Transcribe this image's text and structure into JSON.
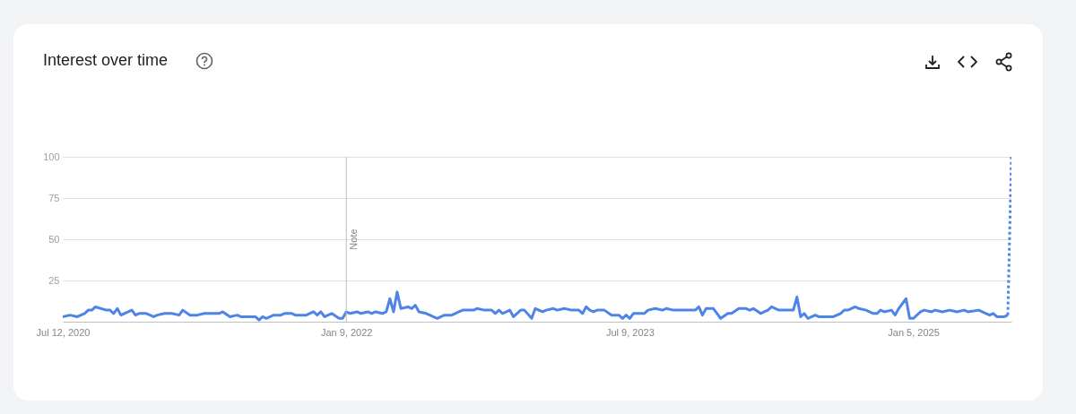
{
  "chart_data": {
    "type": "line",
    "title": "Interest over time",
    "xlim": [
      "2020-07-12",
      "2025-07-13"
    ],
    "xticks": [
      {
        "value": "2020-07-12",
        "label": "Jul 12, 2020"
      },
      {
        "value": "2022-01-09",
        "label": "Jan 9, 2022"
      },
      {
        "value": "2023-07-09",
        "label": "Jul 9, 2023"
      },
      {
        "value": "2025-01-05",
        "label": "Jan 5, 2025"
      }
    ],
    "ylim": [
      0,
      100
    ],
    "yticks": [
      25,
      50,
      75,
      100
    ],
    "grid": "y",
    "ref_lines": [
      {
        "axis": "x",
        "value": "2022-01-09",
        "label": "Note",
        "color": "#bdbdbd"
      }
    ],
    "series": [
      {
        "color": "#4e84e8",
        "line_style": "solid",
        "x": [
          "2020-07-12",
          "2020-07-26",
          "2020-08-09",
          "2020-08-23",
          "2020-08-30",
          "2020-09-06",
          "2020-09-13",
          "2020-10-04",
          "2020-10-11",
          "2020-10-18",
          "2020-10-25",
          "2020-11-01",
          "2020-11-22",
          "2020-11-29",
          "2020-12-06",
          "2020-12-20",
          "2021-01-03",
          "2021-01-10",
          "2021-01-24",
          "2021-02-07",
          "2021-02-21",
          "2021-02-28",
          "2021-03-14",
          "2021-03-28",
          "2021-04-11",
          "2021-05-09",
          "2021-05-16",
          "2021-05-30",
          "2021-06-13",
          "2021-06-20",
          "2021-07-18",
          "2021-07-25",
          "2021-08-01",
          "2021-08-08",
          "2021-08-22",
          "2021-09-05",
          "2021-09-12",
          "2021-09-26",
          "2021-10-03",
          "2021-10-24",
          "2021-11-07",
          "2021-11-14",
          "2021-11-21",
          "2021-11-28",
          "2021-12-12",
          "2021-12-26",
          "2022-01-02",
          "2022-01-09",
          "2022-01-16",
          "2022-01-30",
          "2022-02-06",
          "2022-02-20",
          "2022-02-27",
          "2022-03-06",
          "2022-03-20",
          "2022-03-27",
          "2022-04-03",
          "2022-04-10",
          "2022-04-17",
          "2022-04-24",
          "2022-05-08",
          "2022-05-15",
          "2022-05-22",
          "2022-05-29",
          "2022-06-12",
          "2022-07-03",
          "2022-07-17",
          "2022-07-31",
          "2022-08-21",
          "2022-09-11",
          "2022-09-18",
          "2022-10-02",
          "2022-10-16",
          "2022-10-23",
          "2022-10-30",
          "2022-11-06",
          "2022-11-20",
          "2022-11-27",
          "2022-12-11",
          "2022-12-18",
          "2023-01-01",
          "2023-01-08",
          "2023-01-22",
          "2023-01-29",
          "2023-02-12",
          "2023-02-19",
          "2023-03-05",
          "2023-03-19",
          "2023-04-02",
          "2023-04-09",
          "2023-04-16",
          "2023-04-23",
          "2023-04-30",
          "2023-05-07",
          "2023-05-21",
          "2023-06-04",
          "2023-06-18",
          "2023-06-25",
          "2023-07-02",
          "2023-07-09",
          "2023-07-16",
          "2023-08-06",
          "2023-08-13",
          "2023-08-27",
          "2023-09-10",
          "2023-09-17",
          "2023-10-01",
          "2023-10-15",
          "2023-11-12",
          "2023-11-19",
          "2023-11-26",
          "2023-12-03",
          "2023-12-17",
          "2023-12-31",
          "2024-01-14",
          "2024-01-21",
          "2024-02-04",
          "2024-02-18",
          "2024-02-25",
          "2024-03-03",
          "2024-03-17",
          "2024-03-24",
          "2024-03-31",
          "2024-04-07",
          "2024-04-21",
          "2024-05-19",
          "2024-05-26",
          "2024-06-02",
          "2024-06-09",
          "2024-06-16",
          "2024-06-30",
          "2024-07-07",
          "2024-08-04",
          "2024-08-18",
          "2024-08-25",
          "2024-09-01",
          "2024-09-15",
          "2024-09-22",
          "2024-10-06",
          "2024-10-20",
          "2024-10-27",
          "2024-11-03",
          "2024-11-10",
          "2024-11-24",
          "2024-12-01",
          "2024-12-08",
          "2024-12-22",
          "2024-12-29",
          "2025-01-05",
          "2025-01-19",
          "2025-01-26",
          "2025-02-09",
          "2025-02-16",
          "2025-03-02",
          "2025-03-16",
          "2025-03-30",
          "2025-04-13",
          "2025-04-20",
          "2025-05-11",
          "2025-05-25",
          "2025-06-01",
          "2025-06-08",
          "2025-06-15",
          "2025-06-29",
          "2025-07-06"
        ],
        "values": [
          3,
          4,
          3,
          5,
          7,
          7,
          9,
          7,
          7,
          5,
          8,
          4,
          7,
          4,
          5,
          5,
          3,
          4,
          5,
          5,
          4,
          7,
          4,
          4,
          5,
          5,
          6,
          3,
          4,
          3,
          3,
          1,
          3,
          2,
          4,
          4,
          5,
          5,
          4,
          4,
          6,
          4,
          6,
          3,
          5,
          2,
          2,
          6,
          5,
          6,
          5,
          6,
          5,
          6,
          5,
          6,
          14,
          6,
          18,
          8,
          9,
          8,
          10,
          6,
          5,
          2,
          4,
          4,
          7,
          7,
          8,
          7,
          7,
          5,
          7,
          5,
          7,
          3,
          7,
          7,
          2,
          8,
          6,
          7,
          8,
          7,
          8,
          7,
          7,
          5,
          9,
          7,
          6,
          7,
          7,
          4,
          4,
          2,
          4,
          2,
          5,
          5,
          7,
          8,
          7,
          8,
          7,
          7,
          7,
          9,
          4,
          8,
          8,
          2,
          5,
          5,
          8,
          8,
          7,
          8,
          5,
          6,
          7,
          9,
          7,
          7,
          15,
          3,
          5,
          2,
          4,
          3,
          3,
          5,
          7,
          7,
          9,
          8,
          7,
          5,
          5,
          7,
          6,
          7,
          4,
          8,
          14,
          2,
          2,
          6,
          7,
          6,
          7,
          6,
          7,
          6,
          7,
          6,
          7,
          5,
          4,
          5,
          3,
          3,
          4
        ]
      },
      {
        "color": "#4e84e8",
        "line_style": "dotted",
        "x": [
          "2025-07-06",
          "2025-07-13"
        ],
        "values": [
          4,
          100
        ]
      }
    ]
  }
}
